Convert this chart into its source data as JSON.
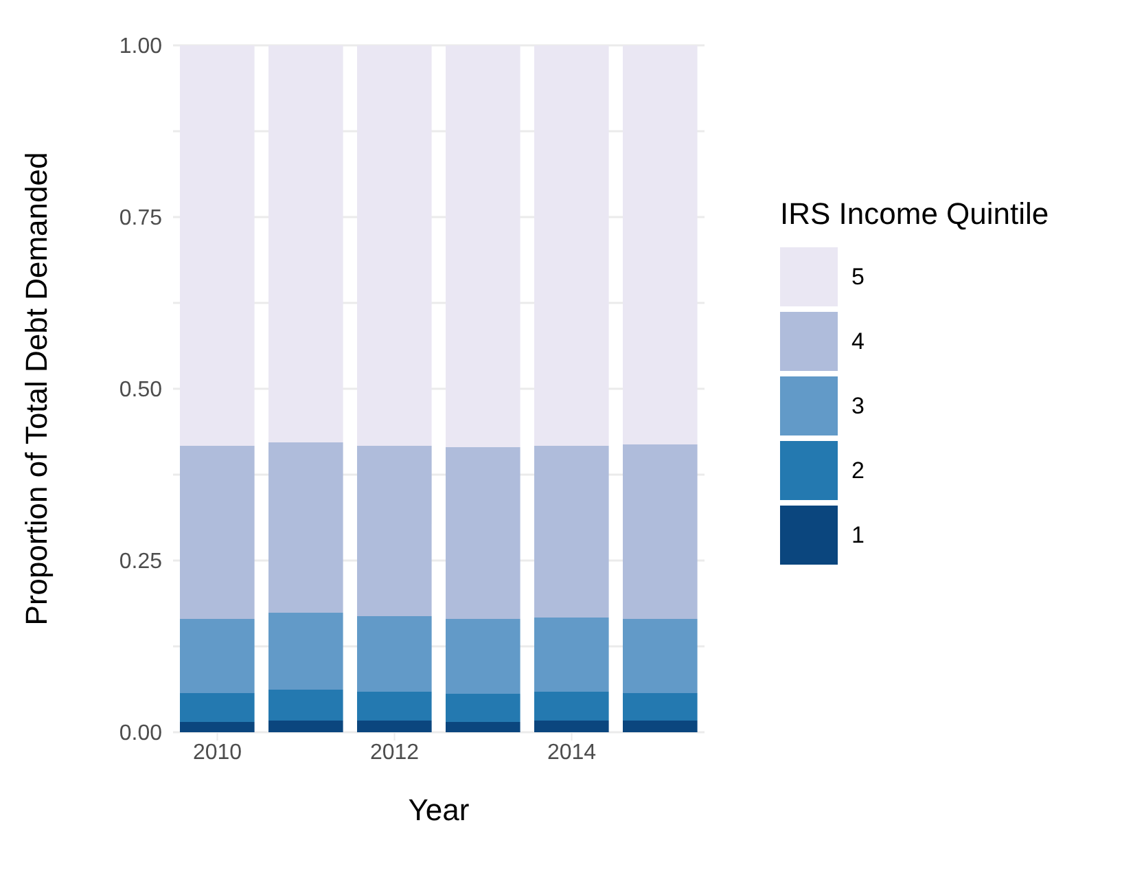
{
  "chart_data": {
    "type": "bar",
    "stacked": true,
    "xlabel": "Year",
    "ylabel": "Proportion of Total Debt Demanded",
    "legend_title": "IRS Income Quintile",
    "legend": "right",
    "grid": true,
    "x": [
      2010,
      2011,
      2012,
      2013,
      2014,
      2015
    ],
    "xlim": [
      2009.5,
      2015.5
    ],
    "xticks": [
      2010,
      2012,
      2014
    ],
    "ylim": [
      0,
      1
    ],
    "yticks": [
      {
        "value": 0,
        "label": "0.00"
      },
      {
        "value": 0.25,
        "label": "0.25"
      },
      {
        "value": 0.5,
        "label": "0.50"
      },
      {
        "value": 0.75,
        "label": "0.75"
      },
      {
        "value": 1,
        "label": "1.00"
      }
    ],
    "series": [
      {
        "name": "1",
        "color": "#0b467e",
        "values": [
          0.015,
          0.017,
          0.017,
          0.015,
          0.017,
          0.017
        ]
      },
      {
        "name": "2",
        "color": "#2479b0",
        "values": [
          0.042,
          0.045,
          0.042,
          0.041,
          0.042,
          0.04
        ]
      },
      {
        "name": "3",
        "color": "#629ac8",
        "values": [
          0.108,
          0.112,
          0.11,
          0.109,
          0.108,
          0.108
        ]
      },
      {
        "name": "4",
        "color": "#afbcdb",
        "values": [
          0.252,
          0.248,
          0.248,
          0.25,
          0.25,
          0.254
        ]
      },
      {
        "name": "5",
        "color": "#eae7f3",
        "values": [
          0.583,
          0.578,
          0.583,
          0.585,
          0.583,
          0.581
        ]
      }
    ]
  }
}
